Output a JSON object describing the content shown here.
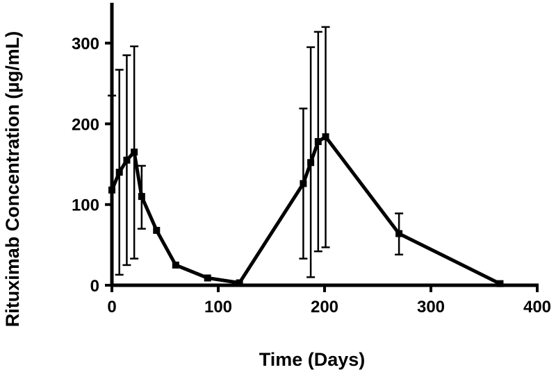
{
  "chart_data": {
    "type": "line",
    "title": "",
    "xlabel": "Time (Days)",
    "ylabel": "Rituximab Concentration (µg/mL)",
    "xlim": [
      0,
      400
    ],
    "ylim": [
      0,
      350
    ],
    "xticks": [
      0,
      100,
      200,
      300,
      400
    ],
    "yticks": [
      0,
      100,
      200,
      300
    ],
    "grid": false,
    "series": [
      {
        "points": [
          {
            "x": 0,
            "y": 118,
            "err_low": 0,
            "err_high": 235
          },
          {
            "x": 7,
            "y": 140,
            "err_low": 13,
            "err_high": 267
          },
          {
            "x": 14,
            "y": 155,
            "err_low": 25,
            "err_high": 285
          },
          {
            "x": 21,
            "y": 165,
            "err_low": 33,
            "err_high": 296
          },
          {
            "x": 28,
            "y": 110,
            "err_low": 70,
            "err_high": 148
          },
          {
            "x": 42,
            "y": 68
          },
          {
            "x": 60,
            "y": 25
          },
          {
            "x": 90,
            "y": 9
          },
          {
            "x": 120,
            "y": 3
          },
          {
            "x": 180,
            "y": 126,
            "err_low": 33,
            "err_high": 219
          },
          {
            "x": 187,
            "y": 152,
            "err_low": 10,
            "err_high": 295
          },
          {
            "x": 194,
            "y": 178,
            "err_low": 42,
            "err_high": 314
          },
          {
            "x": 201,
            "y": 184,
            "err_low": 47,
            "err_high": 320
          },
          {
            "x": 270,
            "y": 64,
            "err_low": 38,
            "err_high": 89
          },
          {
            "x": 365,
            "y": 2
          }
        ]
      }
    ]
  }
}
